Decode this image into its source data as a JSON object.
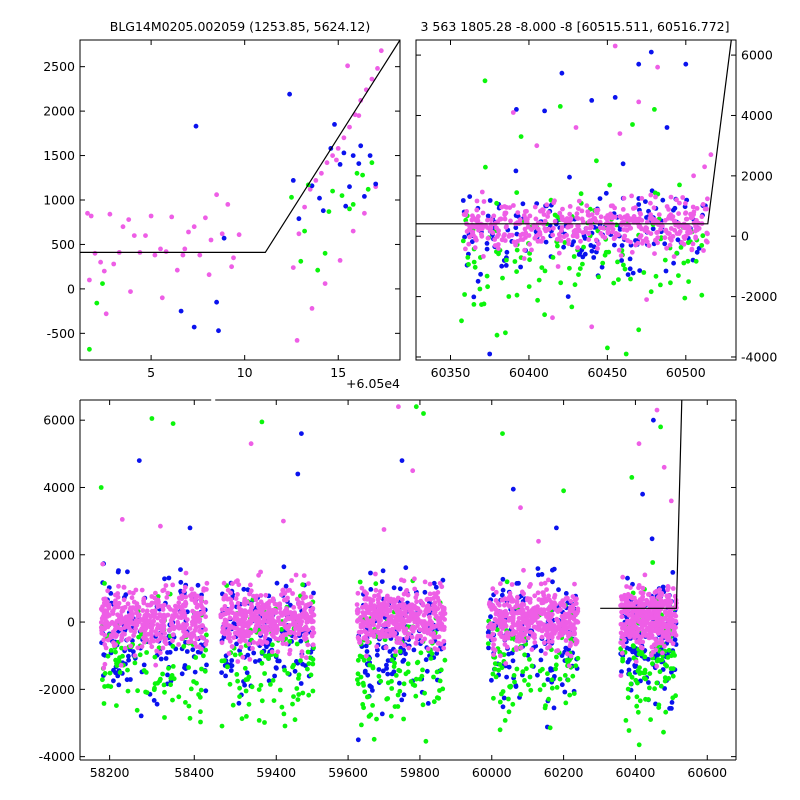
{
  "chart_data": [
    {
      "type": "scatter",
      "panel": "top-left",
      "title": "BLG14M0205.002059 (1253.85, 5624.12)",
      "xlim": [
        1.2,
        18.3
      ],
      "ylim": [
        -800,
        2800
      ],
      "x_offset_label": "+6.05e4",
      "xticks": [
        5,
        10,
        15
      ],
      "xtick_labels": [
        "5",
        "10",
        "15"
      ],
      "yticks": [
        -500,
        0,
        500,
        1000,
        1500,
        2000,
        2500
      ],
      "ytick_labels": [
        "-500",
        "0",
        "500",
        "1000",
        "1500",
        "2000",
        "2500"
      ],
      "series": [
        {
          "color": "#ee5ee6",
          "x": [
            1.6,
            1.8,
            2.0,
            2.3,
            2.5,
            2.8,
            3.0,
            3.3,
            3.5,
            3.8,
            4.1,
            4.4,
            4.7,
            5.0,
            5.2,
            5.5,
            5.8,
            6.1,
            6.4,
            6.7,
            7.0,
            7.3,
            7.6,
            7.9,
            8.2,
            8.5,
            8.8,
            9.1,
            9.4,
            9.7,
            1.7,
            2.6,
            3.9,
            5.6,
            6.8,
            8.1,
            9.3,
            12.6,
            12.9,
            13.2,
            13.5,
            13.8,
            14.1,
            14.4,
            14.7,
            15.0,
            15.3,
            15.6,
            15.9,
            16.2,
            16.5,
            16.8,
            17.1,
            17.3,
            12.8,
            13.6,
            14.3,
            15.1,
            15.8,
            16.4,
            17.0,
            16.1,
            15.5,
            14.9
          ],
          "y": [
            850,
            820,
            400,
            300,
            200,
            840,
            280,
            410,
            700,
            780,
            600,
            410,
            600,
            820,
            380,
            450,
            420,
            810,
            210,
            380,
            640,
            700,
            380,
            800,
            550,
            1060,
            620,
            950,
            350,
            610,
            100,
            -280,
            -30,
            -100,
            450,
            160,
            250,
            240,
            620,
            920,
            1120,
            1220,
            1300,
            1420,
            1500,
            1580,
            1700,
            1820,
            1960,
            2120,
            2240,
            2360,
            2480,
            2680,
            -580,
            -220,
            60,
            320,
            650,
            850,
            1150,
            1950,
            2510,
            1450
          ]
        },
        {
          "color": "#0a12ee",
          "x": [
            7.4,
            6.6,
            7.3,
            8.5,
            8.6,
            8.9,
            12.4,
            12.6,
            13.6,
            14.2,
            14.6,
            14.8,
            15.1,
            15.4,
            15.6,
            15.8,
            16.1,
            16.4,
            16.7,
            17.0,
            12.9,
            14.0,
            15.3,
            16.2
          ],
          "y": [
            1830,
            -250,
            -430,
            -150,
            -470,
            570,
            2190,
            1220,
            1160,
            880,
            1580,
            1850,
            1400,
            930,
            1150,
            1500,
            1410,
            1040,
            1500,
            1180,
            790,
            1020,
            1530,
            1610
          ]
        },
        {
          "color": "#0bf50b",
          "x": [
            1.7,
            2.1,
            2.4,
            12.5,
            13.0,
            13.4,
            13.9,
            14.3,
            14.7,
            15.2,
            15.6,
            16.0,
            16.3,
            16.8,
            13.2,
            14.5,
            15.8,
            16.6
          ],
          "y": [
            -680,
            -160,
            60,
            1030,
            310,
            1170,
            210,
            400,
            1100,
            1050,
            900,
            1300,
            1280,
            1420,
            650,
            870,
            950,
            1120
          ]
        }
      ],
      "model_line": {
        "x": [
          1.2,
          11.1,
          18.3
        ],
        "y": [
          410,
          410,
          2800
        ]
      }
    },
    {
      "type": "scatter",
      "panel": "top-right",
      "title": "3 563 1805.28 -8.000 -8 [60515.511, 60516.772]",
      "xlim": [
        60328,
        60532
      ],
      "ylim": [
        -4100,
        6500
      ],
      "xticks": [
        60350,
        60400,
        60450,
        60500
      ],
      "xtick_labels": [
        "60350",
        "60400",
        "60450",
        "60500"
      ],
      "yticks": [
        -4000,
        -2000,
        0,
        2000,
        4000,
        6000
      ],
      "ytick_labels": [
        "-4000",
        "-2000",
        "0",
        "2000",
        "4000",
        "6000"
      ],
      "series": [
        {
          "color": "#0a12ee",
          "cloud": {
            "x_start": 60358,
            "x_end": 60514,
            "mean": 150,
            "spread": 700,
            "count": 170,
            "seed": 21
          },
          "outliers_x": [
            60392,
            60421,
            60470,
            60478,
            60455,
            60500,
            60440,
            60375,
            60425,
            60488,
            60410,
            60460
          ],
          "outliers_y": [
            4200,
            5400,
            5700,
            6100,
            4600,
            5700,
            4500,
            -3900,
            -2000,
            3600,
            4150,
            2400
          ]
        },
        {
          "color": "#0bf50b",
          "cloud": {
            "x_start": 60358,
            "x_end": 60514,
            "mean": -600,
            "spread": 900,
            "count": 130,
            "seed": 22
          },
          "outliers_x": [
            60372,
            60395,
            60420,
            60443,
            60466,
            60480,
            60496,
            60357,
            60385,
            60410,
            60450,
            60470,
            60462
          ],
          "outliers_y": [
            5150,
            3300,
            4300,
            2500,
            3700,
            4200,
            1700,
            -2800,
            -3200,
            -2600,
            -3700,
            -3100,
            -3900
          ]
        },
        {
          "color": "#ee5ee6",
          "cloud": {
            "x_start": 60358,
            "x_end": 60514,
            "mean": 380,
            "spread": 380,
            "count": 460,
            "seed": 23
          },
          "outliers_x": [
            60390,
            60405,
            60430,
            60455,
            60470,
            60482,
            60458,
            60415,
            60440,
            60475,
            60505,
            60512,
            60516
          ],
          "outliers_y": [
            4100,
            3000,
            3600,
            6300,
            4450,
            5600,
            3400,
            -2700,
            -3000,
            -2100,
            2000,
            2300,
            2700
          ]
        }
      ],
      "model_line": {
        "x": [
          60328,
          60514,
          60529
        ],
        "y": [
          410,
          410,
          6500
        ]
      }
    },
    {
      "type": "scatter",
      "panel": "bottom",
      "title": "",
      "xlim": [
        58130,
        60680
      ],
      "ylim": [
        -4100,
        6600
      ],
      "xticks": [
        58200,
        58400,
        59400,
        59600,
        59800,
        60000,
        60200,
        60400,
        60600
      ],
      "xtick_labels": [
        "58200",
        "58400",
        "59400",
        "59600",
        "59800",
        "60000",
        "60200",
        "60400",
        "60600"
      ],
      "yticks": [
        -4000,
        -2000,
        0,
        2000,
        4000,
        6000
      ],
      "ytick_labels": [
        "-4000",
        "-2000",
        "0",
        "2000",
        "4000",
        "6000"
      ],
      "x_break": {
        "after": 58440,
        "before": 59230
      },
      "seasons": [
        {
          "x_start": 58180,
          "x_end": 58430
        },
        {
          "x_start": 59245,
          "x_end": 59505
        },
        {
          "x_start": 59625,
          "x_end": 59870
        },
        {
          "x_start": 59990,
          "x_end": 60240
        },
        {
          "x_start": 60358,
          "x_end": 60514
        }
      ],
      "series": [
        {
          "color": "#0a12ee",
          "mean": -400,
          "spread": 900,
          "count_per_season": 150,
          "seed": 31,
          "outliers_x": [
            58270,
            58390,
            59460,
            59470,
            59750,
            60060,
            60180,
            60420,
            60450
          ],
          "outliers_y": [
            4800,
            2800,
            4400,
            5600,
            4800,
            3950,
            2800,
            3800,
            6000
          ]
        },
        {
          "color": "#0bf50b",
          "mean": -1200,
          "spread": 1000,
          "count_per_season": 110,
          "seed": 32,
          "outliers_x": [
            58180,
            58300,
            58350,
            59360,
            59790,
            59810,
            60030,
            60200,
            60390,
            60470
          ],
          "outliers_y": [
            4000,
            6050,
            5900,
            5950,
            6400,
            6200,
            5600,
            3900,
            4300,
            5800
          ]
        },
        {
          "color": "#ee5ee6",
          "mean": 100,
          "spread": 450,
          "count_per_season": 420,
          "seed": 33,
          "outliers_x": [
            58230,
            58320,
            59330,
            59420,
            59700,
            59740,
            59780,
            60080,
            60130,
            60410,
            60460,
            60480,
            60500
          ],
          "outliers_y": [
            3050,
            2850,
            5300,
            3000,
            2750,
            6400,
            4500,
            3400,
            2400,
            5300,
            6300,
            4600,
            3600
          ]
        }
      ],
      "model_line": {
        "x": [
          60302,
          60514,
          60529
        ],
        "y": [
          410,
          410,
          6600
        ]
      }
    }
  ]
}
